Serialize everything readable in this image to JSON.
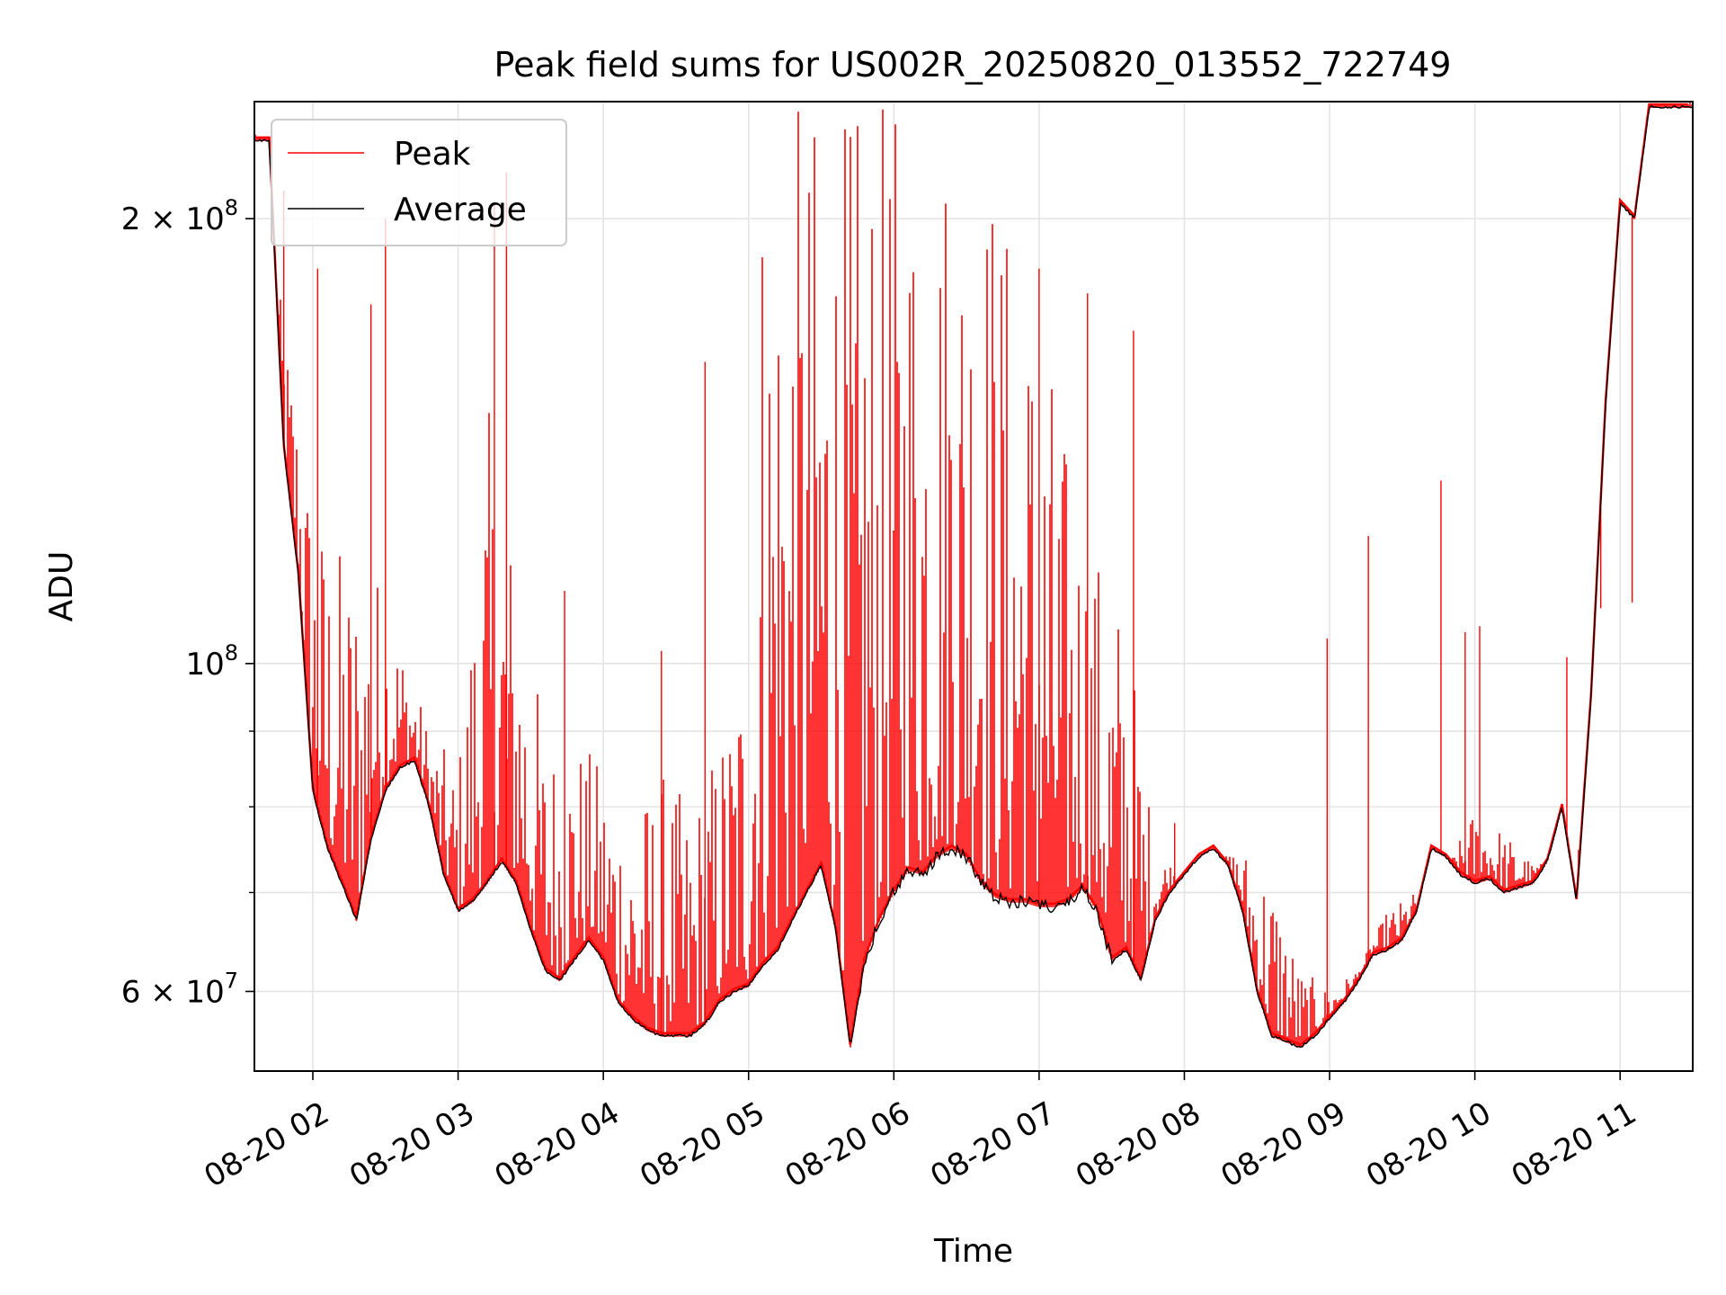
{
  "chart_data": {
    "type": "line",
    "title": "Peak field sums for US002R_20250820_013552_722749",
    "xlabel": "Time",
    "ylabel": "ADU",
    "y_scale": "log",
    "ylim": [
      53000000,
      240000000
    ],
    "xlim": [
      "2025-08-20 01:35:52",
      "2025-08-20 11:30:00"
    ],
    "grid": true,
    "legend": {
      "position": "top-left",
      "entries": [
        "Peak",
        "Average"
      ]
    },
    "x_ticks": [
      {
        "t": "2025-08-20 02:00",
        "label": "08-20 02"
      },
      {
        "t": "2025-08-20 03:00",
        "label": "08-20 03"
      },
      {
        "t": "2025-08-20 04:00",
        "label": "08-20 04"
      },
      {
        "t": "2025-08-20 05:00",
        "label": "08-20 05"
      },
      {
        "t": "2025-08-20 06:00",
        "label": "08-20 06"
      },
      {
        "t": "2025-08-20 07:00",
        "label": "08-20 07"
      },
      {
        "t": "2025-08-20 08:00",
        "label": "08-20 08"
      },
      {
        "t": "2025-08-20 09:00",
        "label": "08-20 09"
      },
      {
        "t": "2025-08-20 10:00",
        "label": "08-20 10"
      },
      {
        "t": "2025-08-20 11:00",
        "label": "08-20 11"
      }
    ],
    "y_ticks": [
      {
        "v": 200000000,
        "mant": "2 × 10",
        "exp": "8"
      },
      {
        "v": 100000000,
        "mant": "10",
        "exp": "8"
      },
      {
        "v": 60000000,
        "mant": "6 × 10",
        "exp": "7"
      }
    ],
    "series": [
      {
        "name": "Average",
        "color": "#000000",
        "x": [
          "2025-08-20 01:36",
          "2025-08-20 01:42",
          "2025-08-20 01:48",
          "2025-08-20 01:54",
          "2025-08-20 02:00",
          "2025-08-20 02:06",
          "2025-08-20 02:12",
          "2025-08-20 02:18",
          "2025-08-20 02:24",
          "2025-08-20 02:30",
          "2025-08-20 02:36",
          "2025-08-20 02:42",
          "2025-08-20 02:48",
          "2025-08-20 02:54",
          "2025-08-20 03:00",
          "2025-08-20 03:06",
          "2025-08-20 03:12",
          "2025-08-20 03:18",
          "2025-08-20 03:24",
          "2025-08-20 03:30",
          "2025-08-20 03:36",
          "2025-08-20 03:42",
          "2025-08-20 03:48",
          "2025-08-20 03:54",
          "2025-08-20 04:00",
          "2025-08-20 04:06",
          "2025-08-20 04:12",
          "2025-08-20 04:18",
          "2025-08-20 04:24",
          "2025-08-20 04:30",
          "2025-08-20 04:36",
          "2025-08-20 04:42",
          "2025-08-20 04:48",
          "2025-08-20 04:54",
          "2025-08-20 05:00",
          "2025-08-20 05:06",
          "2025-08-20 05:12",
          "2025-08-20 05:18",
          "2025-08-20 05:24",
          "2025-08-20 05:30",
          "2025-08-20 05:36",
          "2025-08-20 05:42",
          "2025-08-20 05:48",
          "2025-08-20 05:54",
          "2025-08-20 06:00",
          "2025-08-20 06:06",
          "2025-08-20 06:12",
          "2025-08-20 06:18",
          "2025-08-20 06:24",
          "2025-08-20 06:30",
          "2025-08-20 06:36",
          "2025-08-20 06:42",
          "2025-08-20 06:48",
          "2025-08-20 06:54",
          "2025-08-20 07:00",
          "2025-08-20 07:06",
          "2025-08-20 07:12",
          "2025-08-20 07:18",
          "2025-08-20 07:24",
          "2025-08-20 07:30",
          "2025-08-20 07:36",
          "2025-08-20 07:42",
          "2025-08-20 07:48",
          "2025-08-20 07:54",
          "2025-08-20 08:00",
          "2025-08-20 08:06",
          "2025-08-20 08:12",
          "2025-08-20 08:18",
          "2025-08-20 08:24",
          "2025-08-20 08:30",
          "2025-08-20 08:36",
          "2025-08-20 08:42",
          "2025-08-20 08:48",
          "2025-08-20 08:54",
          "2025-08-20 09:00",
          "2025-08-20 09:06",
          "2025-08-20 09:12",
          "2025-08-20 09:18",
          "2025-08-20 09:24",
          "2025-08-20 09:30",
          "2025-08-20 09:36",
          "2025-08-20 09:42",
          "2025-08-20 09:48",
          "2025-08-20 09:54",
          "2025-08-20 10:00",
          "2025-08-20 10:06",
          "2025-08-20 10:12",
          "2025-08-20 10:18",
          "2025-08-20 10:24",
          "2025-08-20 10:30",
          "2025-08-20 10:36",
          "2025-08-20 10:42",
          "2025-08-20 10:48",
          "2025-08-20 10:54",
          "2025-08-20 11:00",
          "2025-08-20 11:06",
          "2025-08-20 11:12",
          "2025-08-20 11:18",
          "2025-08-20 11:24",
          "2025-08-20 11:28"
        ],
        "y": [
          226000000,
          226000000,
          140000000,
          115000000,
          82000000,
          75000000,
          71000000,
          67000000,
          76000000,
          82000000,
          85000000,
          86000000,
          80000000,
          72000000,
          68000000,
          69000000,
          71000000,
          73500000,
          71000000,
          66000000,
          62000000,
          61000000,
          63000000,
          65000000,
          63000000,
          59000000,
          57500000,
          56500000,
          56000000,
          56000000,
          56000000,
          57000000,
          59000000,
          60000000,
          60500000,
          62500000,
          64000000,
          67000000,
          70000000,
          73000000,
          66000000,
          55000000,
          63000000,
          67000000,
          70000000,
          72500000,
          72000000,
          74000000,
          75000000,
          74000000,
          71000000,
          69500000,
          69000000,
          69000000,
          68500000,
          68500000,
          69000000,
          70500000,
          68000000,
          63000000,
          64000000,
          61000000,
          67000000,
          70000000,
          72000000,
          74000000,
          75000000,
          73000000,
          68000000,
          60000000,
          56000000,
          55500000,
          55000000,
          56000000,
          57500000,
          59000000,
          61000000,
          63500000,
          64000000,
          65000000,
          68000000,
          75000000,
          74000000,
          72000000,
          71000000,
          71500000,
          70000000,
          70500000,
          71000000,
          73500000,
          80000000,
          69000000,
          95000000,
          150000000,
          205000000,
          200000000,
          238000000,
          238000000,
          238000000,
          238000000
        ]
      },
      {
        "name": "Peak",
        "color": "#ff0000",
        "envelope_x": [
          "2025-08-20 01:36",
          "2025-08-20 01:48",
          "2025-08-20 02:00",
          "2025-08-20 02:12",
          "2025-08-20 02:24",
          "2025-08-20 02:36",
          "2025-08-20 02:48",
          "2025-08-20 03:00",
          "2025-08-20 03:12",
          "2025-08-20 03:24",
          "2025-08-20 03:36",
          "2025-08-20 03:48",
          "2025-08-20 04:00",
          "2025-08-20 04:12",
          "2025-08-20 04:24",
          "2025-08-20 04:36",
          "2025-08-20 04:48",
          "2025-08-20 05:00",
          "2025-08-20 05:06",
          "2025-08-20 05:12",
          "2025-08-20 05:24",
          "2025-08-20 05:36",
          "2025-08-20 05:48",
          "2025-08-20 06:00",
          "2025-08-20 06:12",
          "2025-08-20 06:24",
          "2025-08-20 06:36",
          "2025-08-20 06:48",
          "2025-08-20 07:00",
          "2025-08-20 07:12",
          "2025-08-20 07:24",
          "2025-08-20 07:36",
          "2025-08-20 07:48",
          "2025-08-20 08:00",
          "2025-08-20 08:12",
          "2025-08-20 08:24",
          "2025-08-20 08:36",
          "2025-08-20 08:48",
          "2025-08-20 09:00",
          "2025-08-20 09:12",
          "2025-08-20 09:24",
          "2025-08-20 09:36",
          "2025-08-20 09:48",
          "2025-08-20 10:00",
          "2025-08-20 10:12",
          "2025-08-20 10:24",
          "2025-08-20 10:36",
          "2025-08-20 10:48",
          "2025-08-20 11:00",
          "2025-08-20 11:12",
          "2025-08-20 11:28"
        ],
        "envelope_high": [
          230000000,
          170000000,
          130000000,
          120000000,
          120000000,
          105000000,
          90000000,
          85000000,
          150000000,
          120000000,
          90000000,
          90000000,
          85000000,
          80000000,
          85000000,
          80000000,
          90000000,
          110000000,
          240000000,
          240000000,
          240000000,
          240000000,
          240000000,
          240000000,
          240000000,
          240000000,
          240000000,
          200000000,
          180000000,
          140000000,
          120000000,
          110000000,
          75000000,
          72000000,
          73000000,
          75000000,
          73000000,
          62000000,
          60000000,
          62000000,
          68000000,
          70000000,
          72000000,
          80000000,
          77000000,
          73000000,
          73000000,
          78000000,
          85000000,
          210000000,
          240000000
        ],
        "spikes": [
          {
            "t": "2025-08-20 01:48",
            "y": 209000000
          },
          {
            "t": "2025-08-20 02:02",
            "y": 185000000
          },
          {
            "t": "2025-08-20 02:24",
            "y": 175000000
          },
          {
            "t": "2025-08-20 02:30",
            "y": 200000000
          },
          {
            "t": "2025-08-20 03:15",
            "y": 205000000
          },
          {
            "t": "2025-08-20 03:20",
            "y": 215000000
          },
          {
            "t": "2025-08-20 03:44",
            "y": 112000000
          },
          {
            "t": "2025-08-20 04:24",
            "y": 102000000
          },
          {
            "t": "2025-08-20 04:42",
            "y": 160000000
          },
          {
            "t": "2025-08-20 07:00",
            "y": 185000000
          },
          {
            "t": "2025-08-20 07:20",
            "y": 178000000
          },
          {
            "t": "2025-08-20 07:39",
            "y": 168000000
          },
          {
            "t": "2025-08-20 07:56",
            "y": 78000000
          },
          {
            "t": "2025-08-20 08:59",
            "y": 104000000
          },
          {
            "t": "2025-08-20 09:16",
            "y": 122000000
          },
          {
            "t": "2025-08-20 09:46",
            "y": 133000000
          },
          {
            "t": "2025-08-20 09:56",
            "y": 105000000
          },
          {
            "t": "2025-08-20 10:02",
            "y": 106000000
          },
          {
            "t": "2025-08-20 10:38",
            "y": 101000000
          },
          {
            "t": "2025-08-20 10:52",
            "y": 109000000
          },
          {
            "t": "2025-08-20 11:05",
            "y": 110000000
          }
        ]
      }
    ]
  }
}
